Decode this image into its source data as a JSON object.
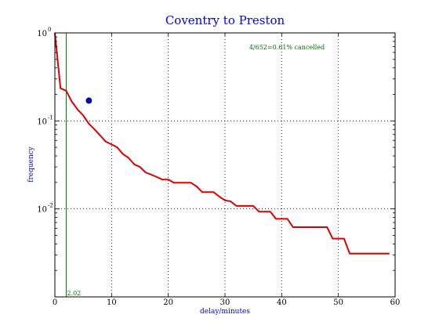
{
  "chart_data": {
    "type": "line",
    "title": "Coventry to Preston",
    "xlabel": "delay/minutes",
    "ylabel": "frequency",
    "xlim": [
      0,
      60
    ],
    "ylim": [
      0.001,
      1
    ],
    "yscale": "log",
    "grid": true,
    "x_ticks": [
      0,
      10,
      20,
      30,
      40,
      50,
      60
    ],
    "y_ticks": [
      {
        "value": 1,
        "base": "10",
        "exp": "0"
      },
      {
        "value": 0.1,
        "base": "10",
        "exp": "-1"
      },
      {
        "value": 0.01,
        "base": "10",
        "exp": "-2"
      }
    ],
    "series": [
      {
        "color": "#dd0000",
        "x": [
          0,
          1,
          2,
          3,
          4,
          5,
          6,
          7,
          8,
          9,
          10,
          11,
          12,
          13,
          14,
          15,
          16,
          17,
          18,
          19,
          20,
          21,
          22,
          23,
          24,
          25,
          26,
          27,
          28,
          29,
          30,
          31,
          32,
          33,
          34,
          35,
          36,
          37,
          38,
          39,
          40,
          41,
          42,
          43,
          44,
          45,
          46,
          47,
          48,
          49,
          50,
          51,
          52,
          53,
          54,
          55,
          56,
          57,
          58,
          59
        ],
        "y": [
          1.0,
          0.235,
          0.22,
          0.165,
          0.135,
          0.115,
          0.093,
          0.08,
          0.068,
          0.058,
          0.054,
          0.05,
          0.042,
          0.038,
          0.032,
          0.03,
          0.026,
          0.0245,
          0.023,
          0.0215,
          0.0215,
          0.0198,
          0.0198,
          0.0198,
          0.0198,
          0.018,
          0.0155,
          0.0155,
          0.0155,
          0.0138,
          0.0125,
          0.0122,
          0.0108,
          0.0108,
          0.0108,
          0.0108,
          0.0093,
          0.0093,
          0.0093,
          0.0077,
          0.0077,
          0.0077,
          0.0062,
          0.0062,
          0.0062,
          0.0062,
          0.0062,
          0.0062,
          0.0062,
          0.0046,
          0.0046,
          0.0046,
          0.0031,
          0.0031,
          0.0031,
          0.0031,
          0.0031,
          0.0031,
          0.0031,
          0.0031
        ]
      }
    ],
    "marker_point": {
      "x": 6,
      "y": 0.17,
      "color": "#0000ff"
    },
    "vline": {
      "x": 2,
      "label": "2.02",
      "color": "#007700"
    },
    "annotation": {
      "text": "4/652=0.61% cancelled",
      "color": "#007700"
    }
  }
}
